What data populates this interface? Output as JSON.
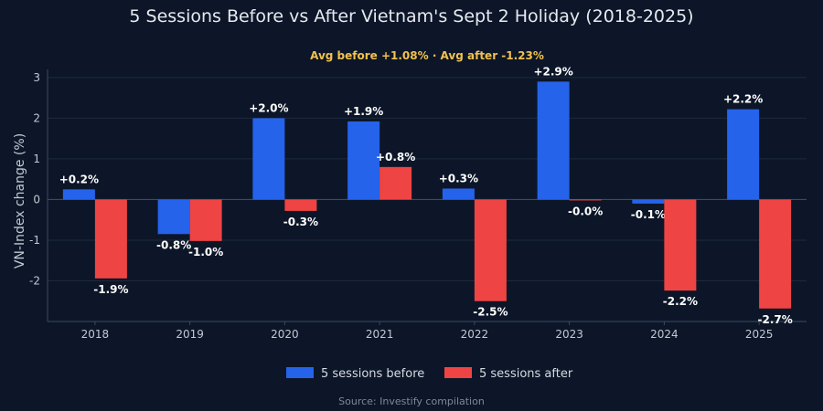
{
  "title": "5 Sessions Before vs After Vietnam's Sept 2 Holiday (2018-2025)",
  "subtitle": "Avg before +1.08% · Avg after -1.23%",
  "source": "Source: Investify compilation",
  "colors": {
    "background": "#0c1628",
    "before": "#2563eb",
    "after": "#ef4444",
    "subtitle": "#f2c14e"
  },
  "chart_data": {
    "type": "bar",
    "categories": [
      "2018",
      "2019",
      "2020",
      "2021",
      "2022",
      "2023",
      "2024",
      "2025"
    ],
    "series": [
      {
        "name": "5 sessions before",
        "values": [
          0.25,
          -0.85,
          2.0,
          1.92,
          0.27,
          2.9,
          -0.1,
          2.22
        ],
        "labels": [
          "+0.2%",
          "-0.8%",
          "+2.0%",
          "+1.9%",
          "+0.3%",
          "+2.9%",
          "-0.1%",
          "+2.2%"
        ]
      },
      {
        "name": "5 sessions after",
        "values": [
          -1.94,
          -1.02,
          -0.28,
          0.8,
          -2.5,
          -0.02,
          -2.24,
          -2.68
        ],
        "labels": [
          "-1.9%",
          "-1.0%",
          "-0.3%",
          "+0.8%",
          "-2.5%",
          "-0.0%",
          "-2.2%",
          "-2.7%"
        ]
      }
    ],
    "title": "5 Sessions Before vs After Vietnam's Sept 2 Holiday (2018-2025)",
    "xlabel": "",
    "ylabel": "VN-Index change (%)",
    "ylim": [
      -3,
      3.2
    ],
    "yticks": [
      -2,
      -1,
      0,
      1,
      2,
      3
    ],
    "grid": true,
    "legend": "bottom-center"
  }
}
